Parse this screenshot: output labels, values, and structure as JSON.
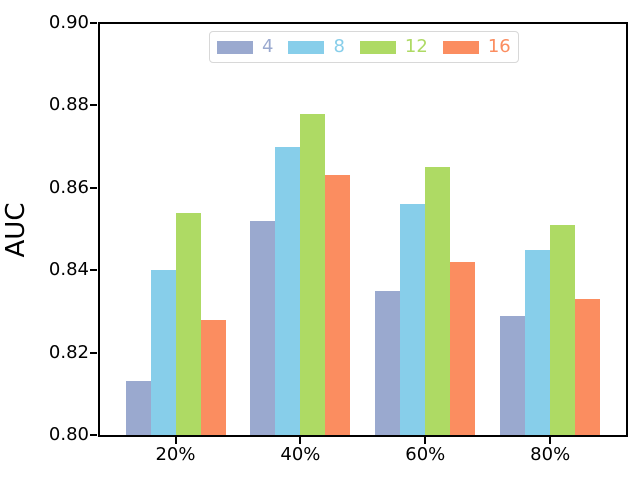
{
  "chart_data": {
    "type": "bar",
    "title": "",
    "xlabel": "",
    "ylabel": "AUC",
    "categories": [
      "20%",
      "40%",
      "60%",
      "80%"
    ],
    "series": [
      {
        "name": "4",
        "color": "#9aa9cf",
        "values": [
          0.813,
          0.852,
          0.835,
          0.829
        ]
      },
      {
        "name": "8",
        "color": "#87ceea",
        "values": [
          0.84,
          0.87,
          0.856,
          0.845
        ]
      },
      {
        "name": "12",
        "color": "#aeda64",
        "values": [
          0.854,
          0.878,
          0.865,
          0.851
        ]
      },
      {
        "name": "16",
        "color": "#fb8d60",
        "values": [
          0.828,
          0.863,
          0.842,
          0.833
        ]
      }
    ],
    "ylim": [
      0.8,
      0.9
    ],
    "yticks": [
      "0.80",
      "0.82",
      "0.84",
      "0.86",
      "0.88",
      "0.90"
    ],
    "grid": false,
    "legend_position": "top-center",
    "axis_color": "#000000",
    "legend_border_color": "#d8d8d8"
  }
}
